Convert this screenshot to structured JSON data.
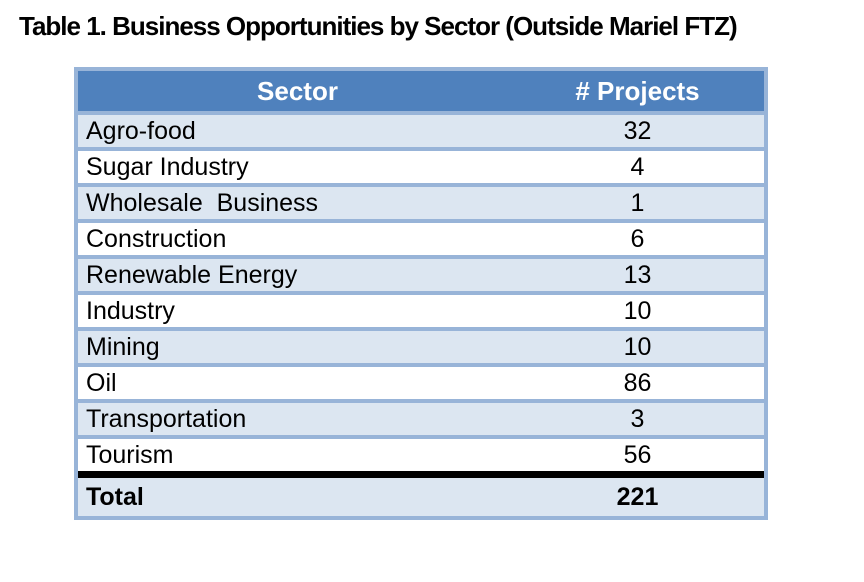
{
  "title": "Table 1. Business Opportunities by Sector (Outside Mariel FTZ)",
  "table": {
    "columns": [
      "Sector",
      "# Projects"
    ],
    "rows": [
      {
        "sector": "Agro-food",
        "projects": "32"
      },
      {
        "sector": "Sugar Industry",
        "projects": "4"
      },
      {
        "sector": "Wholesale  Business",
        "projects": "1"
      },
      {
        "sector": "Construction",
        "projects": "6"
      },
      {
        "sector": "Renewable Energy",
        "projects": "13"
      },
      {
        "sector": "Industry",
        "projects": "10"
      },
      {
        "sector": "Mining",
        "projects": "10"
      },
      {
        "sector": "Oil",
        "projects": "86"
      },
      {
        "sector": "Transportation",
        "projects": "3"
      },
      {
        "sector": "Tourism",
        "projects": "56"
      }
    ],
    "total": {
      "label": "Total",
      "value": "221"
    }
  },
  "chart_data": {
    "type": "table",
    "title": "Table 1. Business Opportunities by Sector (Outside Mariel FTZ)",
    "columns": [
      "Sector",
      "# Projects"
    ],
    "categories": [
      "Agro-food",
      "Sugar Industry",
      "Wholesale Business",
      "Construction",
      "Renewable Energy",
      "Industry",
      "Mining",
      "Oil",
      "Transportation",
      "Tourism"
    ],
    "values": [
      32,
      4,
      1,
      6,
      13,
      10,
      10,
      86,
      3,
      56
    ],
    "total": 221
  },
  "colors": {
    "header_bg": "#4F81BD",
    "row_alt_bg": "#DCE6F1",
    "border_blue": "#98B4D8",
    "header_text": "#FFFFFF",
    "text": "#000000",
    "page_bg": "#FFFFFF"
  }
}
